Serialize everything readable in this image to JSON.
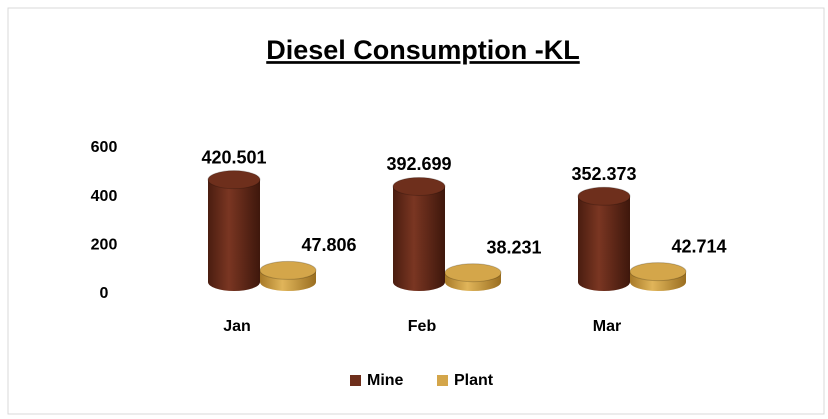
{
  "chart_data": {
    "type": "bar",
    "title": "Diesel Consumption -KL",
    "categories": [
      "Jan",
      "Feb",
      "Mar"
    ],
    "series": [
      {
        "name": "Mine",
        "color": "#6e2f1c",
        "values": [
          420.501,
          392.699,
          352.373
        ]
      },
      {
        "name": "Plant",
        "color": "#d4a64a",
        "values": [
          47.806,
          38.231,
          42.714
        ]
      }
    ],
    "ylim": [
      0,
      600
    ],
    "yticks": [
      0,
      200,
      400,
      600
    ],
    "legend": "bottom"
  }
}
